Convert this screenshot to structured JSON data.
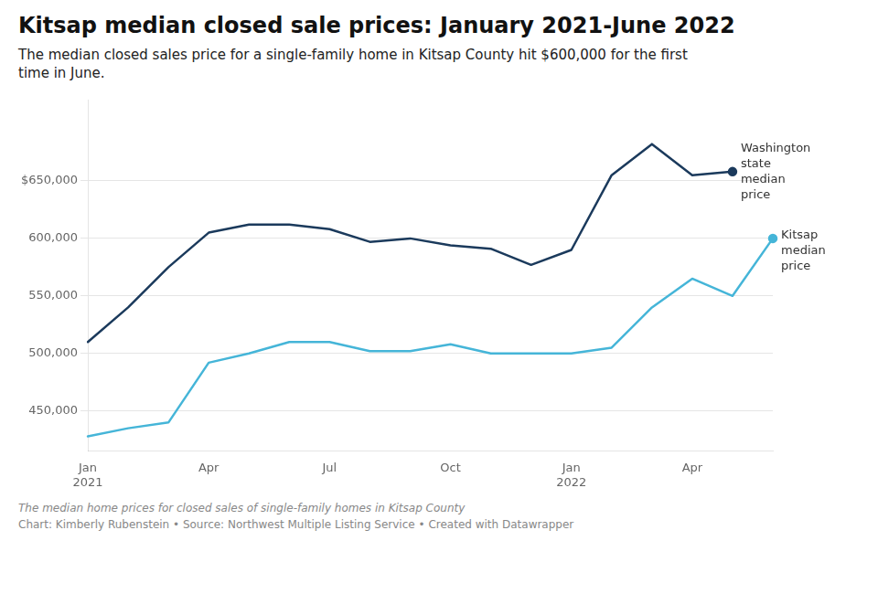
{
  "chart_data": {
    "type": "line",
    "title": "Kitsap median closed sale prices: January 2021-June 2022",
    "subtitle": "The median closed sales price for a single-family home in Kitsap County hit $600,000 for the first\ntime in June.",
    "footnotes": [
      "The median home prices for closed sales of single-family homes in Kitsap County",
      "Chart: Kimberly Rubenstein • Source: Northwest Multiple Listing Service • Created with Datawrapper"
    ],
    "categories": [
      "Jan\n2021",
      null,
      null,
      "Apr",
      null,
      null,
      "Jul",
      null,
      null,
      "Oct",
      null,
      null,
      "Jan\n2022",
      null,
      null,
      "Apr",
      null,
      null
    ],
    "series": [
      {
        "name": "Washington\nstate\nmedian\nprice",
        "color": "#1b3a5c",
        "values": [
          510000,
          540000,
          575000,
          605000,
          612000,
          612000,
          608000,
          597000,
          600000,
          594000,
          591000,
          577000,
          590000,
          655000,
          682000,
          655000,
          658000,
          null
        ]
      },
      {
        "name": "Kitsap\nmedian\nprice",
        "color": "#45b5d8",
        "values": [
          428000,
          435000,
          440000,
          492000,
          500000,
          510000,
          510000,
          502000,
          502000,
          508000,
          500000,
          500000,
          500000,
          505000,
          540000,
          565000,
          550000,
          600000
        ]
      }
    ],
    "ylim": [
      415000,
      720000
    ],
    "yticks": [
      {
        "value": 450000,
        "label": "450,000"
      },
      {
        "value": 500000,
        "label": "500,000"
      },
      {
        "value": 550000,
        "label": "550,000"
      },
      {
        "value": 600000,
        "label": "600,000"
      },
      {
        "value": 650000,
        "label": "$650,000"
      }
    ],
    "grid": true
  }
}
